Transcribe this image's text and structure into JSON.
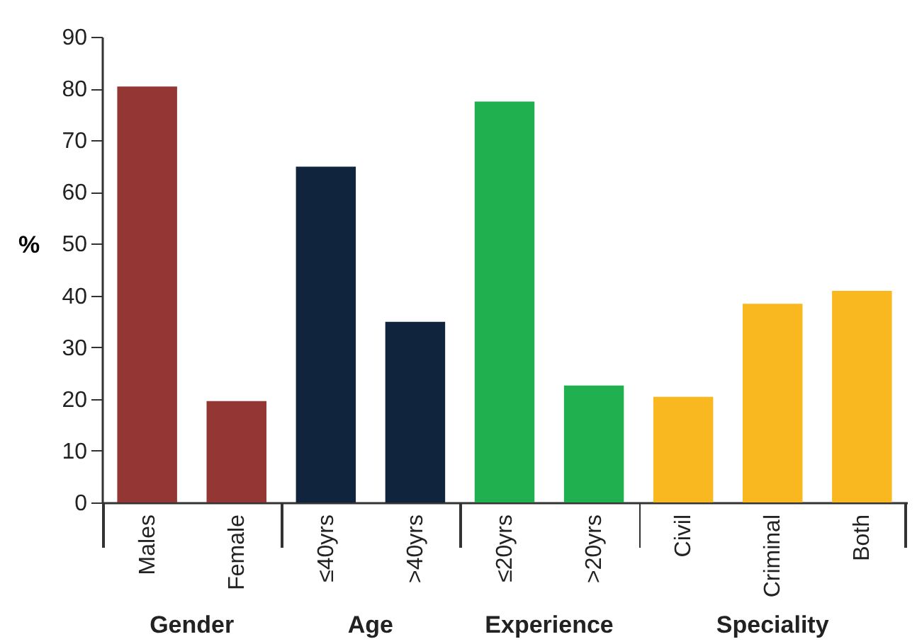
{
  "chart_data": {
    "type": "bar",
    "ylabel": "%",
    "categories": [
      "Males",
      "Female",
      "≤40yrs",
      ">40yrs",
      "≤20yrs",
      ">20yrs",
      "Civil",
      "Criminal",
      "Both"
    ],
    "values": [
      80.4,
      19.6,
      64.9,
      34.9,
      77.5,
      22.6,
      20.4,
      38.4,
      40.9
    ],
    "colors": [
      "#943634",
      "#943634",
      "#10243e",
      "#10243e",
      "#21b050",
      "#21b050",
      "#f9b81f",
      "#f9b81f",
      "#f9b81f"
    ],
    "annotations": [
      "Gender",
      "Age",
      "Experience",
      "Speciality"
    ],
    "ylim": [
      0,
      90
    ],
    "yticks": [
      0,
      10,
      20,
      30,
      40,
      50,
      60,
      70,
      80,
      90
    ],
    "grid": false
  }
}
